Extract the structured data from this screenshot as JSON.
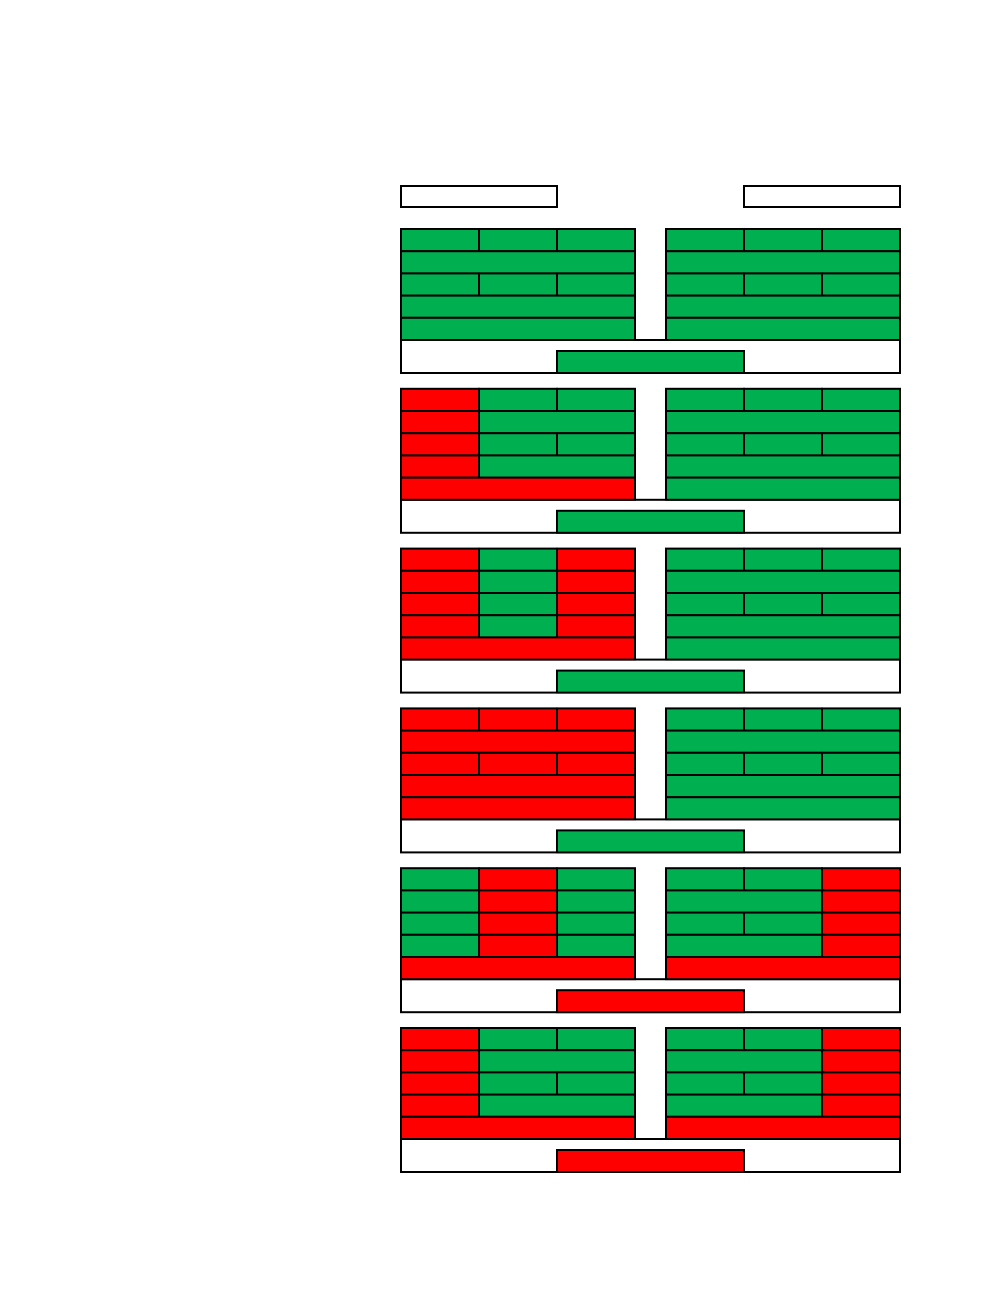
{
  "panels": [
    {
      "left": {
        "columns": [
          "#00b050",
          "#00b050",
          "#00b050"
        ],
        "base": "#00b050"
      },
      "right": {
        "columns": [
          "#00b050",
          "#00b050",
          "#00b050"
        ],
        "base": "#00b050"
      },
      "bar": "#00b050"
    },
    {
      "left": {
        "columns": [
          "#ff0000",
          "#00b050",
          "#00b050"
        ],
        "base": "#ff0000"
      },
      "right": {
        "columns": [
          "#00b050",
          "#00b050",
          "#00b050"
        ],
        "base": "#00b050"
      },
      "bar": "#00b050"
    },
    {
      "left": {
        "columns": [
          "#ff0000",
          "#00b050",
          "#ff0000"
        ],
        "base": "#ff0000"
      },
      "right": {
        "columns": [
          "#00b050",
          "#00b050",
          "#00b050"
        ],
        "base": "#00b050"
      },
      "bar": "#00b050"
    },
    {
      "left": {
        "columns": [
          "#ff0000",
          "#ff0000",
          "#ff0000"
        ],
        "base": "#ff0000"
      },
      "right": {
        "columns": [
          "#00b050",
          "#00b050",
          "#00b050"
        ],
        "base": "#00b050"
      },
      "bar": "#00b050"
    },
    {
      "left": {
        "columns": [
          "#00b050",
          "#ff0000",
          "#00b050"
        ],
        "base": "#ff0000"
      },
      "right": {
        "columns": [
          "#00b050",
          "#00b050",
          "#ff0000"
        ],
        "base": "#ff0000"
      },
      "bar": "#ff0000"
    },
    {
      "left": {
        "columns": [
          "#ff0000",
          "#00b050",
          "#00b050"
        ],
        "base": "#ff0000"
      },
      "right": {
        "columns": [
          "#00b050",
          "#00b050",
          "#ff0000"
        ],
        "base": "#ff0000"
      },
      "bar": "#ff0000"
    }
  ]
}
